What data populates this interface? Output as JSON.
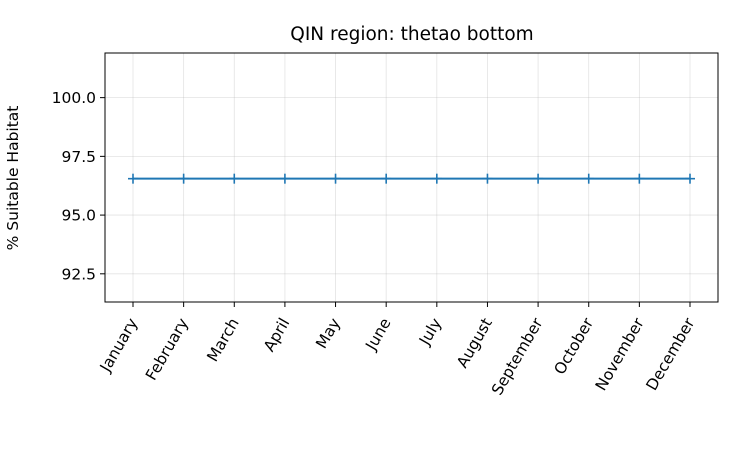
{
  "chart_data": {
    "type": "line",
    "title": "QIN region: thetao bottom",
    "xlabel": "",
    "ylabel": "% Suitable Habitat",
    "categories": [
      "January",
      "February",
      "March",
      "April",
      "May",
      "June",
      "July",
      "August",
      "September",
      "October",
      "November",
      "December"
    ],
    "series": [
      {
        "values": [
          96.55,
          96.55,
          96.55,
          96.55,
          96.55,
          96.55,
          96.55,
          96.55,
          96.55,
          96.55,
          96.55,
          96.55
        ],
        "color": "#1f77b4",
        "marker": "plus"
      }
    ],
    "ylim": [
      91.3,
      101.9
    ],
    "yticks": [
      92.5,
      95.0,
      97.5,
      100.0
    ],
    "ytick_labels": [
      "92.5",
      "95.0",
      "97.5",
      "100.0"
    ],
    "grid": true,
    "legend": "none"
  }
}
